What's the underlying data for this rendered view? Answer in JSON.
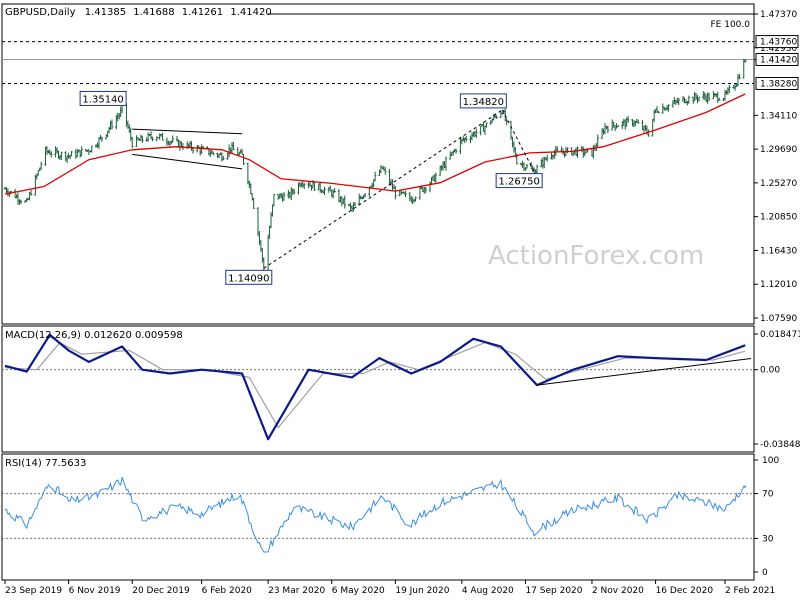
{
  "chart_data": [
    {
      "type": "candlestick",
      "panel": "price",
      "symbol": "GBPUSD",
      "timeframe": "Daily",
      "ohlc_readout": [
        "1.41385",
        "1.41688",
        "1.41261",
        "1.41420"
      ],
      "last_price_label": "1.41420",
      "ylim": [
        1.0759,
        1.4737
      ],
      "yticks": [
        "1.47370",
        "1.42950",
        "1.41420",
        "1.34110",
        "1.29690",
        "1.25270",
        "1.20850",
        "1.16430",
        "1.12010",
        "1.07590"
      ],
      "xtick_labels": [
        "23 Sep 2019",
        "6 Nov 2019",
        "20 Dec 2019",
        "6 Feb 2020",
        "23 Mar 2020",
        "6 May 2020",
        "19 Jun 2020",
        "4 Aug 2020",
        "17 Sep 2020",
        "2 Nov 2020",
        "16 Dec 2020",
        "2 Feb 2021"
      ],
      "xlim": [
        "2019-09-23",
        "2021-02-20"
      ],
      "price_path": [
        {
          "date": "2019-09-23",
          "close": 1.245
        },
        {
          "date": "2019-10-08",
          "close": 1.226
        },
        {
          "date": "2019-10-15",
          "close": 1.262
        },
        {
          "date": "2019-10-21",
          "close": 1.294
        },
        {
          "date": "2019-11-06",
          "close": 1.288
        },
        {
          "date": "2019-11-20",
          "close": 1.296
        },
        {
          "date": "2019-11-29",
          "close": 1.312
        },
        {
          "date": "2019-12-12",
          "close": 1.345
        },
        {
          "date": "2019-12-13",
          "close": 1.3514
        },
        {
          "date": "2019-12-20",
          "close": 1.305
        },
        {
          "date": "2020-01-05",
          "close": 1.315
        },
        {
          "date": "2020-01-20",
          "close": 1.304
        },
        {
          "date": "2020-02-06",
          "close": 1.296
        },
        {
          "date": "2020-02-20",
          "close": 1.288
        },
        {
          "date": "2020-02-26",
          "close": 1.298
        },
        {
          "date": "2020-03-05",
          "close": 1.288
        },
        {
          "date": "2020-03-12",
          "close": 1.235
        },
        {
          "date": "2020-03-20",
          "close": 1.1409
        },
        {
          "date": "2020-03-27",
          "close": 1.235
        },
        {
          "date": "2020-04-06",
          "close": 1.235
        },
        {
          "date": "2020-04-15",
          "close": 1.255
        },
        {
          "date": "2020-05-06",
          "close": 1.24
        },
        {
          "date": "2020-05-20",
          "close": 1.218
        },
        {
          "date": "2020-06-10",
          "close": 1.272
        },
        {
          "date": "2020-06-19",
          "close": 1.24
        },
        {
          "date": "2020-06-30",
          "close": 1.232
        },
        {
          "date": "2020-07-15",
          "close": 1.257
        },
        {
          "date": "2020-08-04",
          "close": 1.308
        },
        {
          "date": "2020-08-19",
          "close": 1.325
        },
        {
          "date": "2020-09-01",
          "close": 1.3482
        },
        {
          "date": "2020-09-11",
          "close": 1.282
        },
        {
          "date": "2020-09-23",
          "close": 1.2675
        },
        {
          "date": "2020-10-05",
          "close": 1.292
        },
        {
          "date": "2020-10-20",
          "close": 1.294
        },
        {
          "date": "2020-11-02",
          "close": 1.292
        },
        {
          "date": "2020-11-11",
          "close": 1.326
        },
        {
          "date": "2020-12-01",
          "close": 1.333
        },
        {
          "date": "2020-12-11",
          "close": 1.318
        },
        {
          "date": "2020-12-16",
          "close": 1.348
        },
        {
          "date": "2021-01-05",
          "close": 1.362
        },
        {
          "date": "2021-01-15",
          "close": 1.365
        },
        {
          "date": "2021-02-02",
          "close": 1.366
        },
        {
          "date": "2021-02-10",
          "close": 1.385
        },
        {
          "date": "2021-02-16",
          "close": 1.4142
        }
      ],
      "moving_average": {
        "color": "#e00000",
        "points": [
          {
            "date": "2019-09-23",
            "value": 1.238
          },
          {
            "date": "2019-10-20",
            "value": 1.248
          },
          {
            "date": "2019-11-20",
            "value": 1.283
          },
          {
            "date": "2019-12-20",
            "value": 1.296
          },
          {
            "date": "2020-01-20",
            "value": 1.3
          },
          {
            "date": "2020-02-20",
            "value": 1.296
          },
          {
            "date": "2020-03-10",
            "value": 1.283
          },
          {
            "date": "2020-04-01",
            "value": 1.258
          },
          {
            "date": "2020-05-06",
            "value": 1.252
          },
          {
            "date": "2020-06-19",
            "value": 1.242
          },
          {
            "date": "2020-07-20",
            "value": 1.253
          },
          {
            "date": "2020-08-20",
            "value": 1.28
          },
          {
            "date": "2020-09-20",
            "value": 1.292
          },
          {
            "date": "2020-10-20",
            "value": 1.294
          },
          {
            "date": "2020-11-10",
            "value": 1.3
          },
          {
            "date": "2020-12-16",
            "value": 1.322
          },
          {
            "date": "2021-01-20",
            "value": 1.345
          },
          {
            "date": "2021-02-16",
            "value": 1.369
          }
        ]
      },
      "horizontal_levels": [
        {
          "value": 1.4737,
          "label": "FE 100.0",
          "style": "solid",
          "from": "2020-03-23"
        },
        {
          "value": 1.4376,
          "label": "1.43760",
          "style": "dashed"
        },
        {
          "value": 1.4142,
          "label": "",
          "style": "solid-gray"
        },
        {
          "value": 1.3828,
          "label": "1.38280",
          "style": "dashed"
        }
      ],
      "callouts": [
        {
          "label": "1.35140",
          "date": "2019-12-13",
          "value": 1.3514,
          "position": "above"
        },
        {
          "label": "1.14090",
          "date": "2020-03-20",
          "value": 1.1409,
          "position": "below"
        },
        {
          "label": "1.34820",
          "date": "2020-09-01",
          "value": 1.3482,
          "position": "above"
        },
        {
          "label": "1.26750",
          "date": "2020-09-23",
          "value": 1.2675,
          "position": "below"
        }
      ],
      "trendlines": [
        {
          "style": "solid",
          "from": {
            "date": "2019-12-20",
            "value": 1.323
          },
          "to": {
            "date": "2020-03-05",
            "value": 1.317
          }
        },
        {
          "style": "solid",
          "from": {
            "date": "2019-12-20",
            "value": 1.29
          },
          "to": {
            "date": "2020-03-05",
            "value": 1.271
          }
        },
        {
          "style": "dashed",
          "from": {
            "date": "2020-03-20",
            "value": 1.1409
          },
          "to": {
            "date": "2020-09-01",
            "value": 1.3482
          }
        },
        {
          "style": "dashed",
          "from": {
            "date": "2020-09-01",
            "value": 1.3482
          },
          "to": {
            "date": "2020-09-23",
            "value": 1.2675
          }
        }
      ],
      "watermark": "ActionForex.com"
    },
    {
      "type": "line",
      "panel": "macd",
      "title": "MACD(12,26,9) 0.012620 0.009598",
      "ylim": [
        -0.03849,
        0.01847
      ],
      "yticks": [
        "0.018471",
        "0.00",
        "-0.038486"
      ],
      "series": [
        {
          "name": "MACD",
          "color": "#0a1a8a",
          "points": [
            {
              "date": "2019-09-23",
              "value": 0.002
            },
            {
              "date": "2019-10-08",
              "value": -0.001
            },
            {
              "date": "2019-10-24",
              "value": 0.018
            },
            {
              "date": "2019-11-06",
              "value": 0.01
            },
            {
              "date": "2019-11-20",
              "value": 0.004
            },
            {
              "date": "2019-12-13",
              "value": 0.012
            },
            {
              "date": "2019-12-27",
              "value": 0.0
            },
            {
              "date": "2020-01-15",
              "value": -0.002
            },
            {
              "date": "2020-02-06",
              "value": 0.0
            },
            {
              "date": "2020-03-05",
              "value": -0.002
            },
            {
              "date": "2020-03-23",
              "value": -0.036
            },
            {
              "date": "2020-04-20",
              "value": 0.0
            },
            {
              "date": "2020-05-20",
              "value": -0.004
            },
            {
              "date": "2020-06-08",
              "value": 0.006
            },
            {
              "date": "2020-06-30",
              "value": -0.002
            },
            {
              "date": "2020-07-20",
              "value": 0.004
            },
            {
              "date": "2020-08-12",
              "value": 0.016
            },
            {
              "date": "2020-08-31",
              "value": 0.012
            },
            {
              "date": "2020-09-25",
              "value": -0.008
            },
            {
              "date": "2020-10-20",
              "value": 0.0
            },
            {
              "date": "2020-11-20",
              "value": 0.007
            },
            {
              "date": "2020-12-16",
              "value": 0.006
            },
            {
              "date": "2021-01-20",
              "value": 0.005
            },
            {
              "date": "2021-02-16",
              "value": 0.01262
            }
          ]
        },
        {
          "name": "Signal",
          "color": "#a0a0a0",
          "points": [
            {
              "date": "2019-09-23",
              "value": 0.001
            },
            {
              "date": "2019-10-15",
              "value": 0.0
            },
            {
              "date": "2019-10-31",
              "value": 0.014
            },
            {
              "date": "2019-11-15",
              "value": 0.008
            },
            {
              "date": "2019-12-18",
              "value": 0.01
            },
            {
              "date": "2020-01-10",
              "value": 0.0
            },
            {
              "date": "2020-02-10",
              "value": 0.0
            },
            {
              "date": "2020-03-10",
              "value": -0.004
            },
            {
              "date": "2020-03-30",
              "value": -0.03
            },
            {
              "date": "2020-04-30",
              "value": -0.002
            },
            {
              "date": "2020-05-28",
              "value": -0.002
            },
            {
              "date": "2020-06-15",
              "value": 0.004
            },
            {
              "date": "2020-07-05",
              "value": 0.0
            },
            {
              "date": "2020-08-20",
              "value": 0.014
            },
            {
              "date": "2020-09-10",
              "value": 0.008
            },
            {
              "date": "2020-10-01",
              "value": -0.005
            },
            {
              "date": "2020-10-25",
              "value": 0.0
            },
            {
              "date": "2020-11-25",
              "value": 0.006
            },
            {
              "date": "2020-12-20",
              "value": 0.006
            },
            {
              "date": "2021-01-25",
              "value": 0.005
            },
            {
              "date": "2021-02-16",
              "value": 0.009598
            }
          ]
        }
      ],
      "trendlines": [
        {
          "style": "solid",
          "from": {
            "date": "2020-09-25",
            "value": -0.008
          },
          "to": {
            "date": "2021-02-20",
            "value": 0.0058
          }
        }
      ],
      "zero_line": 0.0
    },
    {
      "type": "line",
      "panel": "rsi",
      "title": "RSI(14) 77.5633",
      "ylim": [
        0,
        100
      ],
      "yticks": [
        "100",
        "70",
        "30",
        "0"
      ],
      "reference_levels": [
        70,
        30
      ],
      "series": [
        {
          "name": "RSI",
          "color": "#3a8ee6",
          "points": [
            {
              "date": "2019-09-23",
              "value": 56
            },
            {
              "date": "2019-10-08",
              "value": 42
            },
            {
              "date": "2019-10-24",
              "value": 80
            },
            {
              "date": "2019-11-06",
              "value": 63
            },
            {
              "date": "2019-11-25",
              "value": 68
            },
            {
              "date": "2019-12-13",
              "value": 82
            },
            {
              "date": "2019-12-27",
              "value": 48
            },
            {
              "date": "2020-01-20",
              "value": 58
            },
            {
              "date": "2020-02-06",
              "value": 52
            },
            {
              "date": "2020-03-03",
              "value": 70
            },
            {
              "date": "2020-03-20",
              "value": 15
            },
            {
              "date": "2020-04-10",
              "value": 58
            },
            {
              "date": "2020-05-20",
              "value": 40
            },
            {
              "date": "2020-06-10",
              "value": 68
            },
            {
              "date": "2020-06-29",
              "value": 42
            },
            {
              "date": "2020-07-20",
              "value": 62
            },
            {
              "date": "2020-08-20",
              "value": 75
            },
            {
              "date": "2020-08-31",
              "value": 79
            },
            {
              "date": "2020-09-23",
              "value": 36
            },
            {
              "date": "2020-10-20",
              "value": 55
            },
            {
              "date": "2020-11-20",
              "value": 66
            },
            {
              "date": "2020-12-11",
              "value": 46
            },
            {
              "date": "2020-12-31",
              "value": 68
            },
            {
              "date": "2021-01-20",
              "value": 62
            },
            {
              "date": "2021-02-02",
              "value": 56
            },
            {
              "date": "2021-02-16",
              "value": 77.5633
            }
          ]
        }
      ]
    }
  ]
}
